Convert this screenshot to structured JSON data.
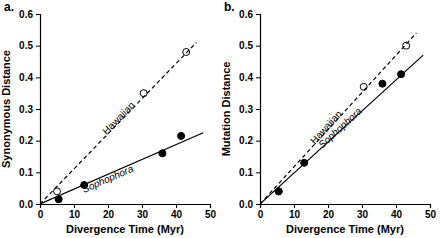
{
  "chart_data": [
    {
      "type": "scatter",
      "title": "a.",
      "x_label": "Divergence Time (Myr)",
      "y_label": "Synonymous Distance",
      "xlim": [
        0,
        50
      ],
      "xticks": [
        0,
        10,
        20,
        30,
        40,
        50
      ],
      "ylim": [
        0,
        0.6
      ],
      "yticks": [
        {
          "value": 0,
          "label": "0.0"
        },
        0.1,
        0.2,
        0.3,
        0.4,
        0.5,
        0.6
      ],
      "series": [
        {
          "type": "scatter",
          "marker": "open-circle",
          "color": "#000000",
          "x": [
            5,
            30.5,
            43
          ],
          "values": [
            0.04,
            0.35,
            0.48
          ]
        },
        {
          "name": "Hawaiian",
          "type": "line",
          "line_style": "dashed",
          "color": "#000000",
          "x": [
            0,
            46
          ],
          "values": [
            0,
            0.51
          ]
        },
        {
          "type": "scatter",
          "marker": "filled-circle",
          "color": "#000000",
          "x": [
            5.5,
            13,
            36,
            41.5
          ],
          "values": [
            0.015,
            0.06,
            0.16,
            0.215
          ]
        },
        {
          "name": "Sophophora",
          "type": "line",
          "line_style": "solid",
          "color": "#000000",
          "x": [
            0,
            48
          ],
          "values": [
            0,
            0.225
          ]
        }
      ]
    },
    {
      "type": "scatter",
      "title": "b.",
      "x_label": "Divergence Time (Myr)",
      "y_label": "Mutation Distance",
      "xlim": [
        0,
        50
      ],
      "xticks": [
        0,
        10,
        20,
        30,
        40,
        50
      ],
      "ylim": [
        0,
        0.6
      ],
      "yticks": [
        {
          "value": 0,
          "label": "0.0"
        },
        0.1,
        0.2,
        0.3,
        0.4,
        0.5,
        0.6
      ],
      "series": [
        {
          "type": "scatter",
          "marker": "open-circle",
          "color": "#000000",
          "x": [
            5.5,
            30.5,
            43
          ],
          "values": [
            0.04,
            0.37,
            0.5
          ]
        },
        {
          "name": "Hawaiian",
          "type": "line",
          "line_style": "dashed",
          "color": "#000000",
          "x": [
            0,
            46
          ],
          "values": [
            0,
            0.54
          ]
        },
        {
          "type": "scatter",
          "marker": "filled-circle",
          "color": "#000000",
          "x": [
            5.5,
            13,
            36,
            41.5
          ],
          "values": [
            0.04,
            0.13,
            0.38,
            0.41
          ]
        },
        {
          "name": "Sophophora",
          "type": "line",
          "line_style": "solid",
          "color": "#000000",
          "x": [
            0,
            48
          ],
          "values": [
            0,
            0.47
          ]
        }
      ]
    }
  ]
}
